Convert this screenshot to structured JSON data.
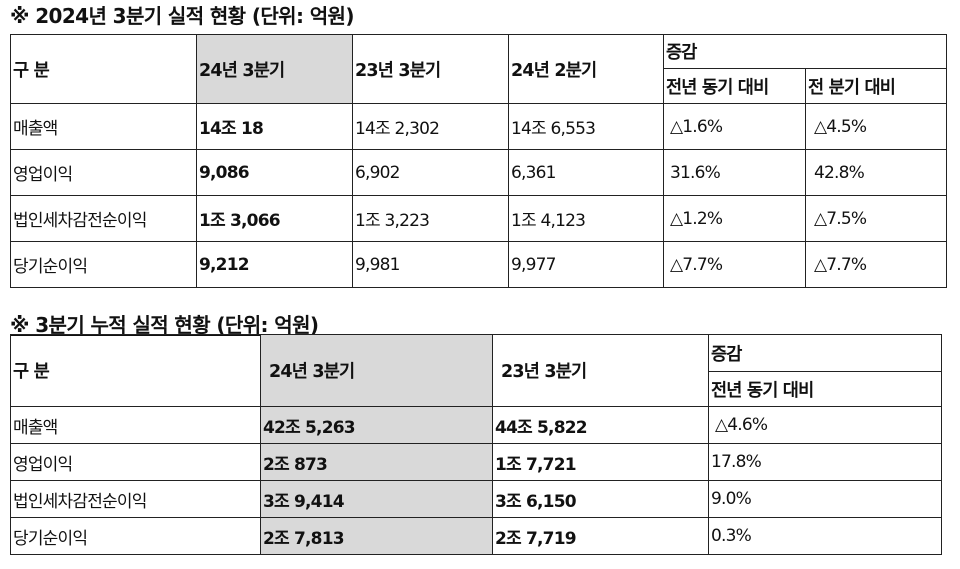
{
  "table1": {
    "title": "※ 2024년 3분기 실적 현황 (단위: 억원)",
    "headers": {
      "category": "구 분",
      "q3_2024": "24년 3분기",
      "q3_2023": "23년 3분기",
      "q2_2024": "24년 2분기",
      "change": "증감",
      "yoy": "전년 동기 대비",
      "qoq": "전 분기 대비"
    },
    "rows": [
      {
        "label": "매출액",
        "q3_2024": "14조 18",
        "q3_2023": "14조 2,302",
        "q2_2024": "14조 6,553",
        "yoy": "△1.6%",
        "qoq": "△4.5%"
      },
      {
        "label": "영업이익",
        "q3_2024": "9,086",
        "q3_2023": "6,902",
        "q2_2024": "6,361",
        "yoy": "31.6%",
        "qoq": "42.8%"
      },
      {
        "label": "법인세차감전순이익",
        "q3_2024": "1조 3,066",
        "q3_2023": "1조 3,223",
        "q2_2024": "1조 4,123",
        "yoy": "△1.2%",
        "qoq": "△7.5%"
      },
      {
        "label": "당기순이익",
        "q3_2024": "9,212",
        "q3_2023": "9,981",
        "q2_2024": "9,977",
        "yoy": "△7.7%",
        "qoq": "△7.7%"
      }
    ]
  },
  "table2": {
    "title": "※ 3분기 누적 실적 현황 (단위: 억원)",
    "headers": {
      "category": "구 분",
      "q3_2024": "24년 3분기",
      "q3_2023": "23년 3분기",
      "change": "증감",
      "yoy": "전년 동기 대비"
    },
    "rows": [
      {
        "label": "매출액",
        "q3_2024": "42조 5,263",
        "q3_2023": "44조 5,822",
        "yoy": "△4.6%"
      },
      {
        "label": "영업이익",
        "q3_2024": "2조 873",
        "q3_2023": "1조 7,721",
        "yoy": "17.8%"
      },
      {
        "label": "법인세차감전순이익",
        "q3_2024": "3조 9,414",
        "q3_2023": "3조 6,150",
        "yoy": "9.0%"
      },
      {
        "label": "당기순이익",
        "q3_2024": "2조 7,813",
        "q3_2023": "2조 7,719",
        "yoy": "0.3%"
      }
    ]
  },
  "colors": {
    "highlight_column": "#d9d9d9",
    "border": "#222222",
    "text": "#111111"
  }
}
